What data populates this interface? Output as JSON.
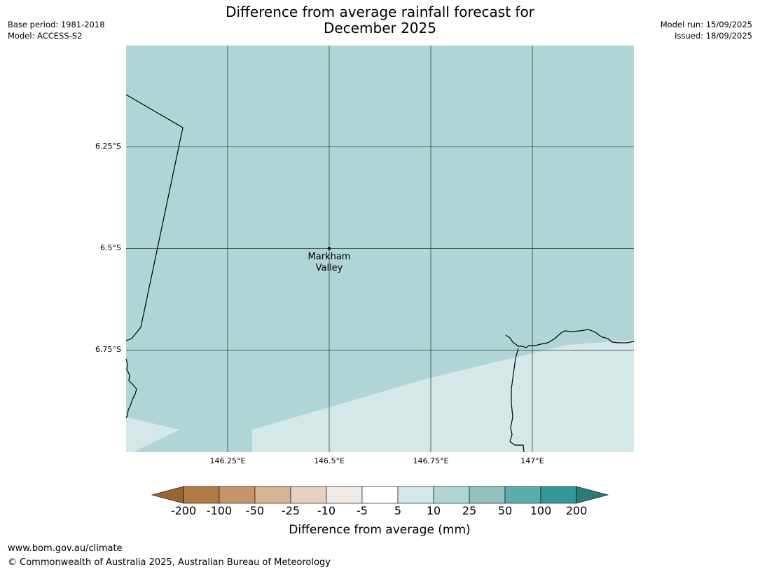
{
  "header": {
    "title_line1": "Difference from average rainfall forecast for",
    "title_line2": "December 2025",
    "base_period": "Base period: 1981-2018",
    "model": "Model: ACCESS-S2",
    "model_run": "Model run: 15/09/2025",
    "issued": "Issued: 18/09/2025"
  },
  "map": {
    "lat_ticks": [
      "6.25°S",
      "6.5°S",
      "6.75°S"
    ],
    "lon_ticks": [
      "146.25°E",
      "146.5°E",
      "146.75°E",
      "147°E"
    ],
    "place": {
      "name_line1": "Markham",
      "name_line2": "Valley"
    },
    "colors": {
      "main_fill": "#afd5d5",
      "light_fill": "#d5e8e8",
      "grid": "#2a3a3a",
      "coast": "#000000"
    }
  },
  "legend": {
    "title": "Difference from average (mm)",
    "labels": [
      "-200",
      "-100",
      "-50",
      "-25",
      "-10",
      "-5",
      "5",
      "10",
      "25",
      "50",
      "100",
      "200"
    ],
    "colors": [
      "#9a6630",
      "#b07a42",
      "#c59468",
      "#d6b393",
      "#e6d0bf",
      "#f0eae6",
      "#ffffff",
      "#d5e8e8",
      "#afd5d5",
      "#92c0bf",
      "#5caeae",
      "#339998",
      "#2b7b79"
    ]
  },
  "footer": {
    "url": "www.bom.gov.au/climate",
    "copyright": "© Commonwealth of Australia 2025, Australian Bureau of Meteorology"
  }
}
